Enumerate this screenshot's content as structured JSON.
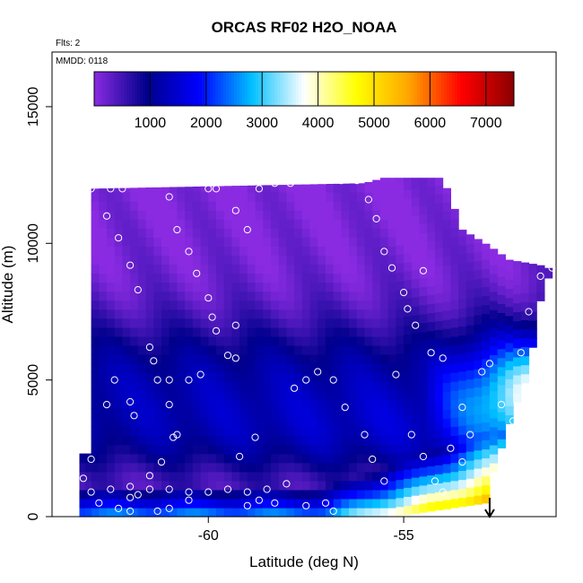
{
  "chart_data": {
    "type": "heatmap",
    "title": "ORCAS RF02 H2O_NOAA",
    "flights_label": "Flts: 2",
    "date_label": "MMDD: 0118",
    "xlabel": "Latitude (deg N)",
    "ylabel": "Altitude (m)",
    "xlim": [
      -64.0,
      -51.1
    ],
    "ylim": [
      0,
      17000
    ],
    "x_ticks": [
      -60,
      -55
    ],
    "x_tick_labels": [
      "-60",
      "-55"
    ],
    "y_ticks": [
      0,
      5000,
      10000,
      15000
    ],
    "y_tick_labels": [
      "0",
      "5000",
      "10000",
      "15000"
    ],
    "colorbar": {
      "min": 0,
      "max": 7500,
      "ticks": [
        1000,
        2000,
        3000,
        4000,
        5000,
        6000,
        7000
      ],
      "tick_labels": [
        "1000",
        "2000",
        "3000",
        "4000",
        "5000",
        "6000",
        "7000"
      ],
      "colors": [
        "#8a2be2",
        "#00008b",
        "#0000ff",
        "#00bfff",
        "#ffffff",
        "#ffff00",
        "#ffa500",
        "#ff0000",
        "#8b0000"
      ]
    },
    "field_extent": {
      "top_altitude": [
        [
          -63.0,
          12000
        ],
        [
          -56.0,
          12200
        ],
        [
          -55.5,
          12400
        ],
        [
          -54.0,
          12400
        ],
        [
          -53.5,
          10500
        ],
        [
          -52.8,
          9900
        ],
        [
          -52.3,
          9400
        ],
        [
          -51.5,
          9200
        ],
        [
          -51.1,
          9000
        ]
      ],
      "bottom_altitude": [
        [
          -63.3,
          0
        ],
        [
          -55.3,
          0
        ],
        [
          -52.9,
          500
        ],
        [
          -52.8,
          1200
        ],
        [
          -52.3,
          3400
        ],
        [
          -52.0,
          4600
        ],
        [
          -51.8,
          5200
        ],
        [
          -51.6,
          7200
        ],
        [
          -51.4,
          8600
        ],
        [
          -51.1,
          9000
        ]
      ]
    },
    "flight_track": [
      [
        -63.0,
        12000
      ],
      [
        -62.6,
        11000
      ],
      [
        -62.3,
        10200
      ],
      [
        -62.0,
        9200
      ],
      [
        -61.8,
        8300
      ],
      [
        -61.5,
        6200
      ],
      [
        -61.4,
        5700
      ],
      [
        -61.3,
        5000
      ],
      [
        -61.0,
        4100
      ],
      [
        -60.8,
        3000
      ],
      [
        -60.9,
        2900
      ],
      [
        -61.2,
        2000
      ],
      [
        -61.5,
        1500
      ],
      [
        -61.8,
        800
      ],
      [
        -62.0,
        700
      ],
      [
        -62.3,
        300
      ],
      [
        -63.0,
        2100
      ],
      [
        -63.2,
        1400
      ],
      [
        -62.6,
        4100
      ],
      [
        -62.4,
        5000
      ],
      [
        -62.0,
        4200
      ],
      [
        -61.9,
        3700
      ],
      [
        -61.0,
        5000
      ],
      [
        -60.5,
        5000
      ],
      [
        -60.2,
        5200
      ],
      [
        -60.0,
        8000
      ],
      [
        -59.9,
        7300
      ],
      [
        -59.8,
        6800
      ],
      [
        -59.3,
        7000
      ],
      [
        -59.5,
        5900
      ],
      [
        -59.3,
        5800
      ],
      [
        -59.2,
        2200
      ],
      [
        -58.8,
        2900
      ],
      [
        -58.5,
        1000
      ],
      [
        -58.3,
        500
      ],
      [
        -58.0,
        1200
      ],
      [
        -57.8,
        4700
      ],
      [
        -57.5,
        5000
      ],
      [
        -57.2,
        5300
      ],
      [
        -56.8,
        5000
      ],
      [
        -56.5,
        4000
      ],
      [
        -56.0,
        3000
      ],
      [
        -55.8,
        2100
      ],
      [
        -55.5,
        1300
      ],
      [
        -55.2,
        5200
      ],
      [
        -54.8,
        3000
      ],
      [
        -54.5,
        2200
      ],
      [
        -54.2,
        1300
      ],
      [
        -54.0,
        900
      ],
      [
        -53.5,
        2000
      ],
      [
        -53.8,
        2500
      ],
      [
        -53.5,
        4000
      ],
      [
        -53.3,
        3000
      ],
      [
        -53.0,
        5300
      ],
      [
        -52.8,
        5600
      ],
      [
        -52.5,
        4100
      ],
      [
        -52.2,
        3500
      ],
      [
        -52.0,
        2500
      ],
      [
        -52.0,
        6000
      ],
      [
        -51.8,
        7500
      ],
      [
        -51.5,
        8800
      ],
      [
        -51.2,
        9100
      ],
      [
        -59.8,
        12000
      ],
      [
        -59.3,
        11200
      ],
      [
        -59.0,
        10500
      ],
      [
        -58.7,
        12000
      ],
      [
        -58.3,
        12200
      ],
      [
        -57.9,
        12200
      ],
      [
        -57.4,
        12300
      ],
      [
        -57.0,
        12300
      ],
      [
        -56.6,
        12300
      ],
      [
        -56.2,
        12300
      ],
      [
        -55.9,
        11600
      ],
      [
        -55.7,
        10900
      ],
      [
        -55.5,
        9700
      ],
      [
        -55.3,
        9100
      ],
      [
        -55.0,
        8200
      ],
      [
        -54.9,
        7600
      ],
      [
        -54.7,
        7000
      ],
      [
        -54.3,
        6000
      ],
      [
        -54.0,
        5800
      ],
      [
        -54.5,
        9000
      ],
      [
        -61.0,
        11700
      ],
      [
        -60.5,
        9700
      ],
      [
        -60.3,
        8900
      ],
      [
        -60.0,
        12000
      ],
      [
        -60.8,
        10500
      ],
      [
        -62.5,
        12000
      ],
      [
        -62.2,
        12000
      ],
      [
        -63.0,
        900
      ],
      [
        -62.8,
        500
      ],
      [
        -62.5,
        1000
      ],
      [
        -62.0,
        1100
      ],
      [
        -61.5,
        1000
      ],
      [
        -61.0,
        1000
      ],
      [
        -60.5,
        900
      ],
      [
        -60.0,
        900
      ],
      [
        -59.5,
        1000
      ],
      [
        -59.0,
        900
      ],
      [
        -58.7,
        600
      ],
      [
        -57.5,
        400
      ],
      [
        -57.0,
        500
      ],
      [
        -56.8,
        200
      ],
      [
        -59.0,
        400
      ],
      [
        -61.0,
        300
      ],
      [
        -61.3,
        200
      ],
      [
        -62.0,
        200
      ],
      [
        -60.5,
        600
      ]
    ],
    "arrow_latitude": -52.8
  }
}
